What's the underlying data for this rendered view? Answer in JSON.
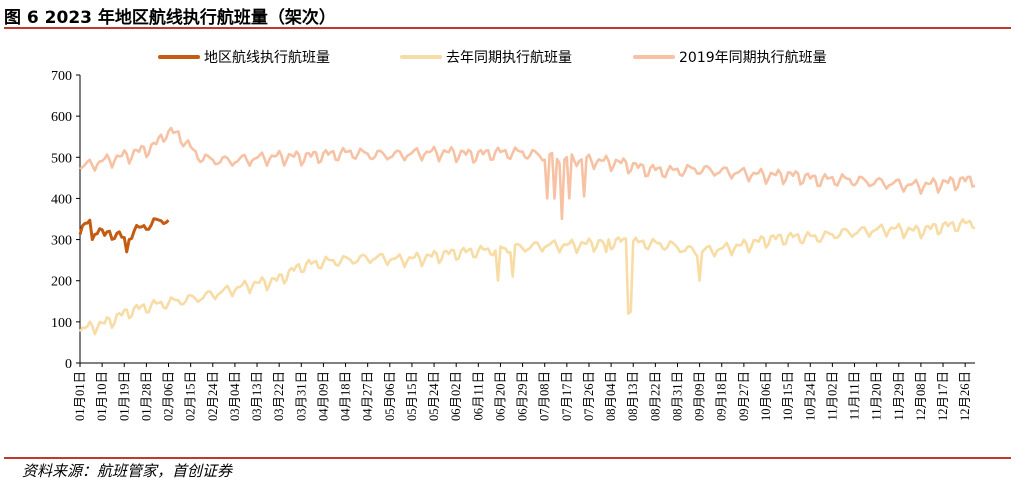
{
  "title": "图  6 2023 年地区航线执行航班量（架次）",
  "source": "资料来源：航班管家，首创证券",
  "chart_data": {
    "type": "line",
    "title": "",
    "xlabel": "",
    "ylabel": "",
    "ylim": [
      0,
      700
    ],
    "yticks": [
      0,
      100,
      200,
      300,
      400,
      500,
      600,
      700
    ],
    "grid": false,
    "legend_position": "top",
    "x_tick_labels": [
      "01月01日",
      "01月10日",
      "01月19日",
      "01月28日",
      "02月06日",
      "02月15日",
      "02月24日",
      "03月04日",
      "03月13日",
      "03月22日",
      "03月31日",
      "04月09日",
      "04月18日",
      "04月27日",
      "05月06日",
      "05月15日",
      "05月24日",
      "06月02日",
      "06月11日",
      "06月20日",
      "06月29日",
      "07月08日",
      "07月17日",
      "07月26日",
      "08月04日",
      "08月13日",
      "08月22日",
      "08月31日",
      "09月09日",
      "09月18日",
      "09月27日",
      "10月06日",
      "10月15日",
      "10月24日",
      "11月02日",
      "11月11日",
      "11月20日",
      "11月29日",
      "12月08日",
      "12月17日",
      "12月26日"
    ],
    "tick_step_days": 9,
    "total_days": 365,
    "series": [
      {
        "name": "地区航线执行航班量",
        "color": "#c55a11",
        "weekly_pattern": "oscillating",
        "anchors": [
          [
            0,
            320
          ],
          [
            3,
            340
          ],
          [
            7,
            325
          ],
          [
            10,
            310
          ],
          [
            14,
            315
          ],
          [
            18,
            300
          ],
          [
            22,
            320
          ],
          [
            26,
            330
          ],
          [
            30,
            340
          ],
          [
            33,
            345
          ],
          [
            36,
            350
          ]
        ],
        "amplitude": 28,
        "dips": [
          [
            5,
            300
          ],
          [
            19,
            270
          ]
        ]
      },
      {
        "name": "去年同期执行航班量",
        "color": "#f8dca5",
        "weekly_pattern": "oscillating",
        "anchors": [
          [
            0,
            80
          ],
          [
            10,
            95
          ],
          [
            20,
            125
          ],
          [
            30,
            140
          ],
          [
            40,
            150
          ],
          [
            50,
            160
          ],
          [
            60,
            175
          ],
          [
            70,
            190
          ],
          [
            80,
            200
          ],
          [
            90,
            235
          ],
          [
            100,
            245
          ],
          [
            110,
            250
          ],
          [
            120,
            255
          ],
          [
            130,
            250
          ],
          [
            140,
            255
          ],
          [
            150,
            265
          ],
          [
            160,
            270
          ],
          [
            170,
            275
          ],
          [
            180,
            280
          ],
          [
            190,
            285
          ],
          [
            200,
            285
          ],
          [
            210,
            290
          ],
          [
            220,
            295
          ],
          [
            230,
            290
          ],
          [
            240,
            285
          ],
          [
            250,
            270
          ],
          [
            260,
            275
          ],
          [
            270,
            285
          ],
          [
            280,
            300
          ],
          [
            290,
            305
          ],
          [
            300,
            305
          ],
          [
            310,
            315
          ],
          [
            320,
            320
          ],
          [
            330,
            325
          ],
          [
            340,
            320
          ],
          [
            350,
            330
          ],
          [
            364,
            340
          ]
        ],
        "amplitude": 30,
        "dips": [
          [
            170,
            200
          ],
          [
            176,
            210
          ],
          [
            214,
            270
          ],
          [
            223,
            120
          ],
          [
            224,
            125
          ],
          [
            252,
            200
          ]
        ]
      },
      {
        "name": "2019年同期执行航班量",
        "color": "#f7c2a4",
        "weekly_pattern": "oscillating",
        "anchors": [
          [
            0,
            475
          ],
          [
            10,
            490
          ],
          [
            20,
            505
          ],
          [
            30,
            525
          ],
          [
            35,
            560
          ],
          [
            40,
            555
          ],
          [
            45,
            520
          ],
          [
            50,
            495
          ],
          [
            60,
            490
          ],
          [
            70,
            495
          ],
          [
            80,
            500
          ],
          [
            90,
            500
          ],
          [
            100,
            505
          ],
          [
            110,
            510
          ],
          [
            120,
            505
          ],
          [
            130,
            505
          ],
          [
            140,
            510
          ],
          [
            150,
            510
          ],
          [
            160,
            505
          ],
          [
            170,
            510
          ],
          [
            180,
            510
          ],
          [
            190,
            500
          ],
          [
            200,
            495
          ],
          [
            210,
            490
          ],
          [
            220,
            485
          ],
          [
            230,
            470
          ],
          [
            240,
            465
          ],
          [
            250,
            470
          ],
          [
            260,
            465
          ],
          [
            270,
            460
          ],
          [
            280,
            455
          ],
          [
            290,
            455
          ],
          [
            300,
            445
          ],
          [
            310,
            445
          ],
          [
            320,
            440
          ],
          [
            330,
            435
          ],
          [
            340,
            430
          ],
          [
            350,
            435
          ],
          [
            364,
            445
          ]
        ],
        "amplitude": 32,
        "dips": [
          [
            190,
            400
          ],
          [
            193,
            400
          ],
          [
            196,
            350
          ],
          [
            199,
            400
          ],
          [
            205,
            405
          ]
        ]
      }
    ]
  }
}
